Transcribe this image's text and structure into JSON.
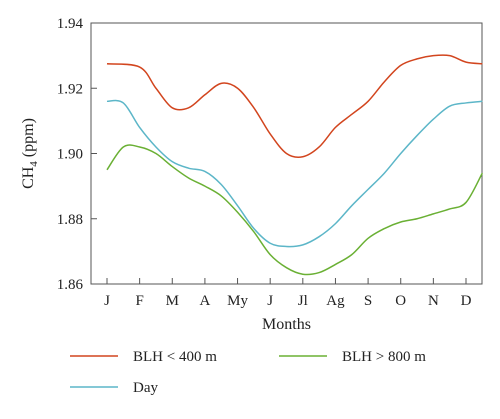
{
  "chart_data": {
    "type": "line",
    "title": "",
    "xlabel": "Months",
    "ylabel": "CH",
    "ylabel_sub": "4",
    "ylabel_unit": " (ppm)",
    "categories": [
      "J",
      "F",
      "M",
      "A",
      "My",
      "J",
      "Jl",
      "Ag",
      "S",
      "O",
      "N",
      "D"
    ],
    "ylim": [
      1.86,
      1.94
    ],
    "yticks": [
      "1.86",
      "1.88",
      "1.90",
      "1.92",
      "1.94"
    ],
    "grid": false,
    "legend_position": "bottom",
    "series": [
      {
        "name": "BLH < 400 m",
        "color": "#d2451e",
        "x": [
          0.0,
          1.0,
          1.5,
          2.0,
          2.5,
          3.0,
          3.5,
          4.0,
          4.5,
          5.0,
          5.5,
          6.0,
          6.5,
          7.0,
          7.5,
          8.0,
          8.5,
          9.0,
          9.5,
          10.0,
          10.5,
          11.0,
          11.5
        ],
        "values": [
          1.9275,
          1.9265,
          1.92,
          1.914,
          1.914,
          1.918,
          1.9215,
          1.92,
          1.914,
          1.906,
          1.9,
          1.899,
          1.902,
          1.908,
          1.912,
          1.916,
          1.922,
          1.927,
          1.929,
          1.93,
          1.93,
          1.928,
          1.9275
        ]
      },
      {
        "name": "BLH > 800 m",
        "color": "#6ab034",
        "x": [
          0.0,
          0.5,
          1.0,
          1.5,
          2.0,
          2.5,
          3.0,
          3.5,
          4.0,
          4.5,
          5.0,
          5.5,
          6.0,
          6.5,
          7.0,
          7.5,
          8.0,
          8.5,
          9.0,
          9.5,
          10.0,
          10.5,
          11.0,
          11.5
        ],
        "values": [
          1.895,
          1.902,
          1.902,
          1.9,
          1.896,
          1.8925,
          1.89,
          1.887,
          1.882,
          1.876,
          1.869,
          1.865,
          1.863,
          1.8635,
          1.866,
          1.869,
          1.874,
          1.877,
          1.879,
          1.88,
          1.8815,
          1.883,
          1.885,
          1.894
        ]
      },
      {
        "name": "Day",
        "color": "#5cb6c8",
        "x": [
          0.0,
          0.5,
          1.0,
          1.5,
          2.0,
          2.5,
          3.0,
          3.5,
          4.0,
          4.5,
          5.0,
          5.5,
          6.0,
          6.5,
          7.0,
          7.5,
          8.0,
          8.5,
          9.0,
          9.5,
          10.0,
          10.5,
          11.0,
          11.5
        ],
        "values": [
          1.916,
          1.9155,
          1.908,
          1.902,
          1.8975,
          1.8955,
          1.8945,
          1.8905,
          1.884,
          1.877,
          1.8725,
          1.8715,
          1.872,
          1.8745,
          1.8785,
          1.884,
          1.889,
          1.894,
          1.9,
          1.9055,
          1.9105,
          1.9145,
          1.9155,
          1.916
        ]
      }
    ]
  }
}
